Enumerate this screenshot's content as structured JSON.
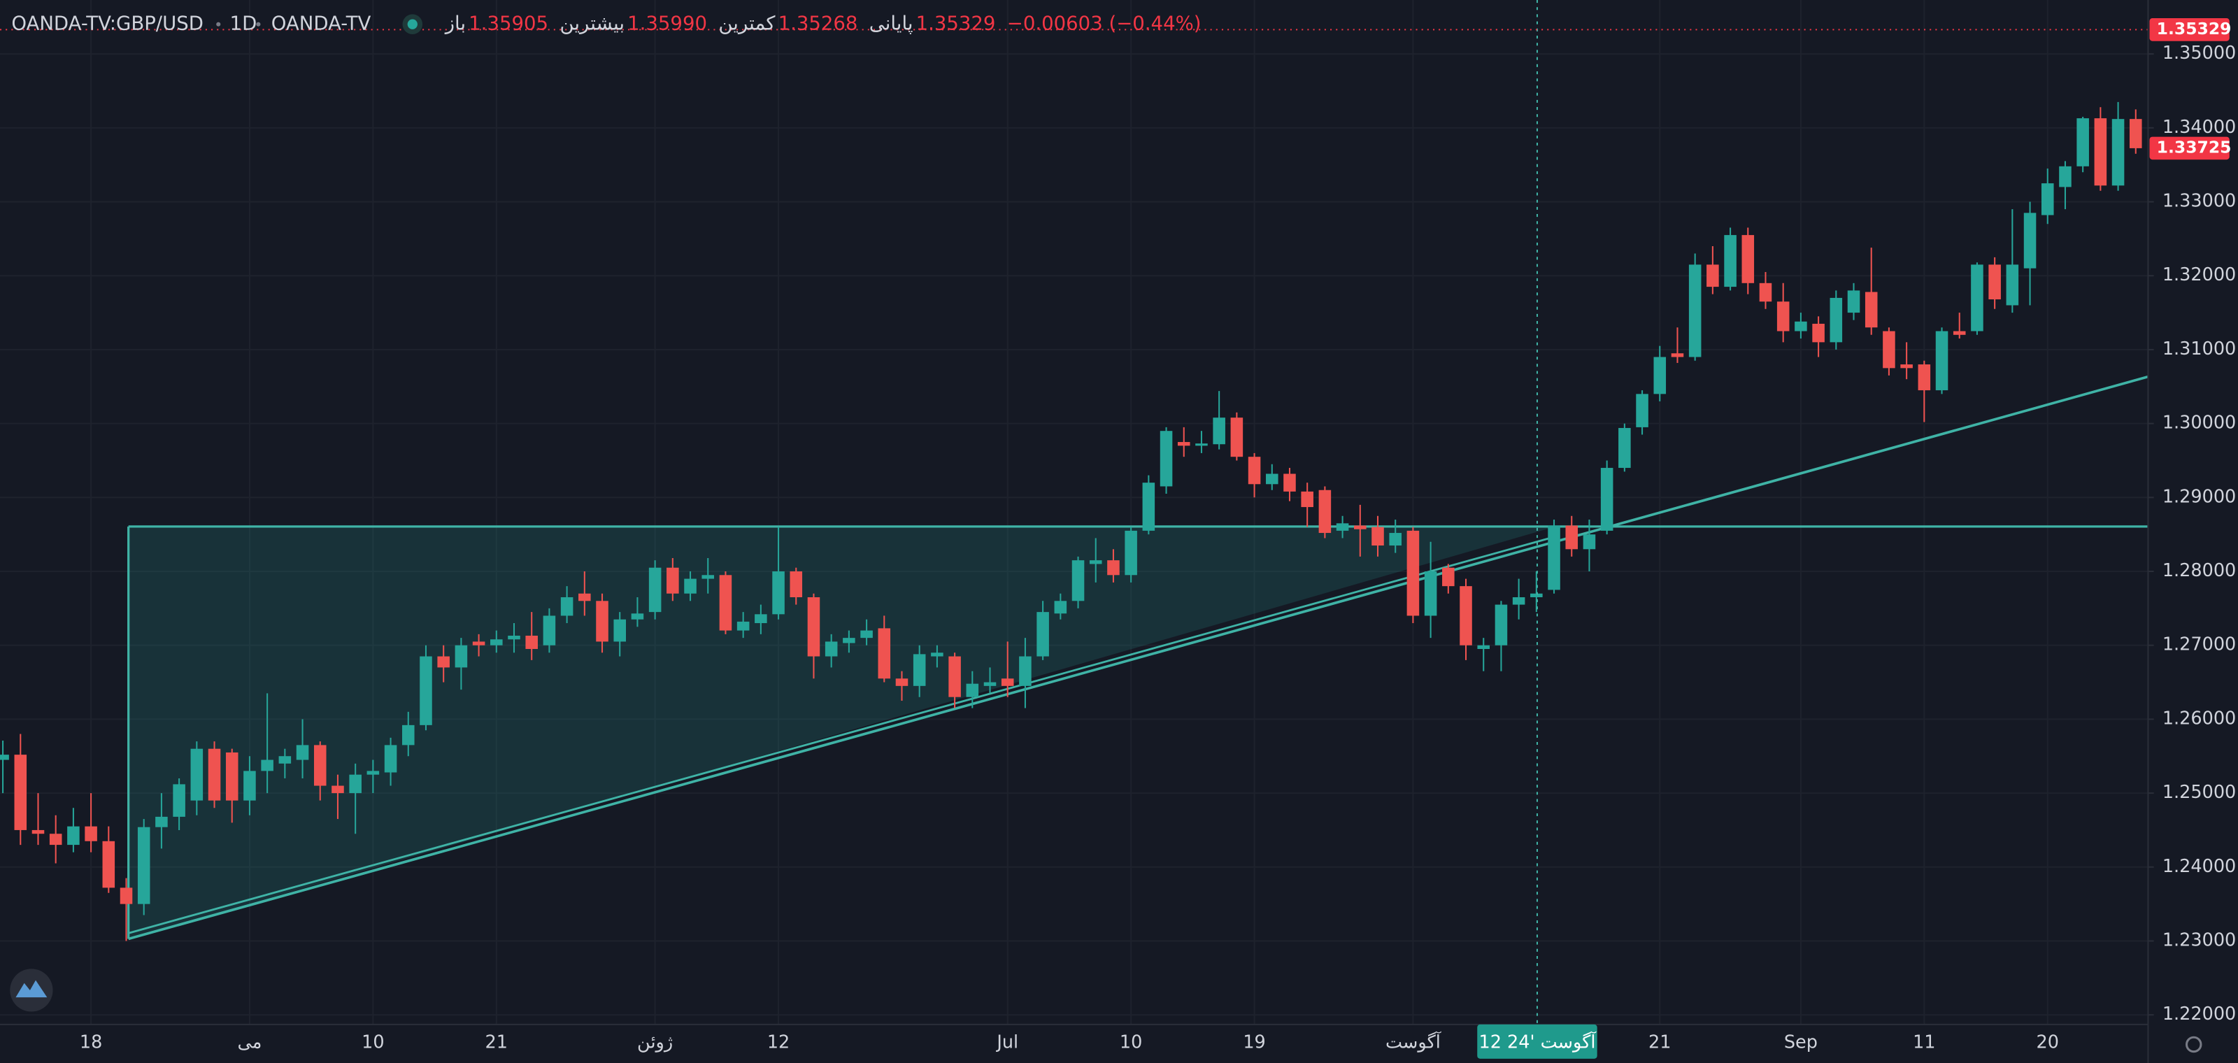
{
  "chart_data": {
    "type": "candlestick",
    "symbol": "OANDA-TV:GBP/USD",
    "interval": "1D",
    "exchange": "OANDA-TV",
    "ohlc_legend": [
      {
        "label": "باز",
        "value": "1.35905"
      },
      {
        "label": "بیشترین",
        "value": "1.35990"
      },
      {
        "label": "کمترین",
        "value": "1.35268"
      },
      {
        "label": "پایانی",
        "value": "1.35329"
      }
    ],
    "change": "−0.00603 (−0.44%)",
    "crosshair_label": "12 آگوست '24",
    "up_color": "#26a69a",
    "down_color": "#ef5350",
    "grid": true,
    "ylim": [
      1.2187,
      1.3573
    ],
    "yticks": [
      {
        "value": 1.22,
        "label": "1.22000"
      },
      {
        "value": 1.23,
        "label": "1.23000"
      },
      {
        "value": 1.24,
        "label": "1.24000"
      },
      {
        "value": 1.25,
        "label": "1.25000"
      },
      {
        "value": 1.26,
        "label": "1.26000"
      },
      {
        "value": 1.27,
        "label": "1.27000"
      },
      {
        "value": 1.28,
        "label": "1.28000"
      },
      {
        "value": 1.29,
        "label": "1.29000"
      },
      {
        "value": 1.3,
        "label": "1.30000"
      },
      {
        "value": 1.31,
        "label": "1.31000"
      },
      {
        "value": 1.32,
        "label": "1.32000"
      },
      {
        "value": 1.33,
        "label": "1.33000"
      },
      {
        "value": 1.34,
        "label": "1.34000"
      },
      {
        "value": 1.35,
        "label": "1.35000"
      }
    ],
    "price_tags": [
      1.35329,
      1.33725
    ],
    "categories": [
      null,
      null,
      null,
      null,
      null,
      "18",
      null,
      null,
      null,
      null,
      null,
      null,
      null,
      null,
      "می",
      null,
      null,
      null,
      null,
      null,
      null,
      "10",
      null,
      null,
      null,
      null,
      null,
      null,
      "21",
      null,
      null,
      null,
      null,
      null,
      null,
      null,
      null,
      "ژوئن",
      null,
      null,
      null,
      null,
      null,
      null,
      "12",
      null,
      null,
      null,
      null,
      null,
      null,
      null,
      null,
      null,
      null,
      null,
      null,
      "Jul",
      null,
      null,
      null,
      null,
      null,
      null,
      "10",
      null,
      null,
      null,
      null,
      null,
      null,
      "19",
      null,
      null,
      null,
      null,
      null,
      null,
      null,
      null,
      "آگوست",
      null,
      null,
      null,
      null,
      null,
      null,
      null,
      null,
      null,
      null,
      null,
      null,
      null,
      "21",
      null,
      null,
      null,
      null,
      null,
      null,
      null,
      "Sep",
      null,
      null,
      null,
      null,
      null,
      null,
      "11",
      null,
      null,
      null,
      null,
      null,
      null,
      "20",
      null,
      null,
      null,
      null,
      null
    ],
    "open": [
      1.2545,
      1.2552,
      1.245,
      1.2445,
      1.243,
      1.2455,
      1.2435,
      1.2372,
      1.235,
      1.2454,
      1.2468,
      1.249,
      1.256,
      1.2555,
      1.249,
      1.253,
      1.254,
      1.2545,
      1.2565,
      1.251,
      1.25,
      1.2525,
      1.2528,
      1.2565,
      1.2592,
      1.2685,
      1.267,
      1.2705,
      1.27,
      1.2708,
      1.2713,
      1.27,
      1.274,
      1.277,
      1.276,
      1.2705,
      1.2735,
      1.2745,
      1.2805,
      1.277,
      1.279,
      1.2795,
      1.272,
      1.273,
      1.2742,
      1.28,
      1.2765,
      1.2685,
      1.2703,
      1.271,
      1.2723,
      1.2655,
      1.2645,
      1.2685,
      1.2685,
      1.263,
      1.2645,
      1.2655,
      1.2645,
      1.2685,
      1.2743,
      1.276,
      1.281,
      1.2815,
      1.2795,
      1.2855,
      1.2915,
      1.2975,
      1.297,
      1.2972,
      1.3008,
      1.2955,
      1.2918,
      1.2932,
      1.2908,
      1.291,
      1.2855,
      1.2862,
      1.286,
      1.2835,
      1.2855,
      1.274,
      1.2805,
      1.278,
      1.2695,
      1.27,
      1.2755,
      1.2765,
      1.2775,
      1.2862,
      1.283,
      1.2855,
      1.294,
      1.2995,
      1.304,
      1.3095,
      1.309,
      1.3215,
      1.3185,
      1.3255,
      1.319,
      1.3165,
      1.3125,
      1.3135,
      1.311,
      1.315,
      1.3178,
      1.3125,
      1.308,
      1.308,
      1.3045,
      1.3125,
      1.3125,
      1.3215,
      1.316,
      1.321,
      1.3282,
      1.332,
      1.3348,
      1.3413,
      1.3322,
      1.3412
    ],
    "high": [
      1.2571,
      1.258,
      1.25,
      1.247,
      1.248,
      1.25,
      1.2455,
      1.2385,
      1.2465,
      1.25,
      1.252,
      1.257,
      1.257,
      1.256,
      1.255,
      1.2635,
      1.256,
      1.26,
      1.257,
      1.2525,
      1.254,
      1.2545,
      1.2575,
      1.261,
      1.27,
      1.27,
      1.271,
      1.2715,
      1.272,
      1.273,
      1.2745,
      1.275,
      1.278,
      1.28,
      1.277,
      1.2745,
      1.2765,
      1.2815,
      1.2818,
      1.28,
      1.2818,
      1.28,
      1.2745,
      1.2755,
      1.286,
      1.2805,
      1.277,
      1.2715,
      1.272,
      1.2735,
      1.274,
      1.2665,
      1.27,
      1.27,
      1.269,
      1.2665,
      1.267,
      1.2705,
      1.271,
      1.276,
      1.277,
      1.282,
      1.2845,
      1.283,
      1.286,
      1.293,
      1.2995,
      1.2995,
      1.299,
      1.3044,
      1.3015,
      1.296,
      1.2945,
      1.294,
      1.292,
      1.2915,
      1.2875,
      1.289,
      1.2875,
      1.287,
      1.286,
      1.284,
      1.281,
      1.279,
      1.271,
      1.276,
      1.279,
      1.28,
      1.287,
      1.2875,
      1.287,
      1.295,
      1.3,
      1.3045,
      1.3105,
      1.313,
      1.323,
      1.324,
      1.3265,
      1.3265,
      1.3205,
      1.319,
      1.315,
      1.3145,
      1.318,
      1.319,
      1.3238,
      1.313,
      1.311,
      1.3085,
      1.313,
      1.315,
      1.3218,
      1.3225,
      1.329,
      1.33,
      1.3345,
      1.3355,
      1.3415,
      1.3428,
      1.3435,
      1.3425
    ],
    "low": [
      1.25,
      1.243,
      1.243,
      1.2405,
      1.242,
      1.242,
      1.2365,
      1.23,
      1.2335,
      1.2425,
      1.245,
      1.247,
      1.248,
      1.246,
      1.247,
      1.25,
      1.252,
      1.252,
      1.249,
      1.2465,
      1.2445,
      1.25,
      1.251,
      1.255,
      1.2585,
      1.265,
      1.264,
      1.2685,
      1.269,
      1.269,
      1.268,
      1.269,
      1.273,
      1.274,
      1.269,
      1.2685,
      1.2725,
      1.2735,
      1.276,
      1.276,
      1.277,
      1.2715,
      1.271,
      1.2715,
      1.2735,
      1.2755,
      1.2655,
      1.267,
      1.269,
      1.27,
      1.265,
      1.2625,
      1.263,
      1.267,
      1.2615,
      1.2615,
      1.2635,
      1.263,
      1.2615,
      1.268,
      1.2735,
      1.275,
      1.2785,
      1.2785,
      1.2785,
      1.285,
      1.2905,
      1.2955,
      1.296,
      1.2965,
      1.295,
      1.29,
      1.291,
      1.2895,
      1.286,
      1.2845,
      1.2845,
      1.282,
      1.282,
      1.2825,
      1.273,
      1.271,
      1.277,
      1.268,
      1.2665,
      1.2665,
      1.2735,
      1.2745,
      1.277,
      1.282,
      1.28,
      1.285,
      1.2935,
      1.2985,
      1.303,
      1.3082,
      1.3085,
      1.3175,
      1.318,
      1.3175,
      1.3155,
      1.311,
      1.3115,
      1.309,
      1.31,
      1.314,
      1.312,
      1.3065,
      1.306,
      1.3002,
      1.304,
      1.3115,
      1.312,
      1.3155,
      1.315,
      1.316,
      1.327,
      1.329,
      1.334,
      1.3315,
      1.3315,
      1.3365
    ],
    "close": [
      1.2552,
      1.245,
      1.2445,
      1.243,
      1.2455,
      1.2435,
      1.2372,
      1.235,
      1.2454,
      1.2468,
      1.2512,
      1.256,
      1.249,
      1.249,
      1.253,
      1.2545,
      1.255,
      1.2565,
      1.251,
      1.25,
      1.2525,
      1.253,
      1.2565,
      1.2592,
      1.2685,
      1.267,
      1.27,
      1.27,
      1.2708,
      1.2713,
      1.2695,
      1.274,
      1.2765,
      1.276,
      1.2705,
      1.2735,
      1.2743,
      1.2805,
      1.277,
      1.279,
      1.2795,
      1.272,
      1.2732,
      1.2742,
      1.28,
      1.2765,
      1.2685,
      1.2705,
      1.271,
      1.272,
      1.2655,
      1.2645,
      1.2688,
      1.269,
      1.263,
      1.2648,
      1.265,
      1.2645,
      1.2685,
      1.2745,
      1.276,
      1.2815,
      1.2815,
      1.2795,
      1.2855,
      1.292,
      1.299,
      1.297,
      1.2973,
      1.3008,
      1.2955,
      1.2918,
      1.2932,
      1.2908,
      1.2887,
      1.2852,
      1.2865,
      1.2857,
      1.2835,
      1.2852,
      1.274,
      1.28,
      1.278,
      1.27,
      1.27,
      1.2755,
      1.2765,
      1.277,
      1.2862,
      1.283,
      1.285,
      1.294,
      1.2994,
      1.304,
      1.309,
      1.309,
      1.3215,
      1.3185,
      1.3255,
      1.319,
      1.3165,
      1.3125,
      1.3138,
      1.311,
      1.317,
      1.318,
      1.313,
      1.3075,
      1.3075,
      1.3045,
      1.3125,
      1.312,
      1.3215,
      1.3168,
      1.3215,
      1.3285,
      1.3325,
      1.3348,
      1.3413,
      1.3322,
      1.3412,
      1.33725
    ]
  }
}
